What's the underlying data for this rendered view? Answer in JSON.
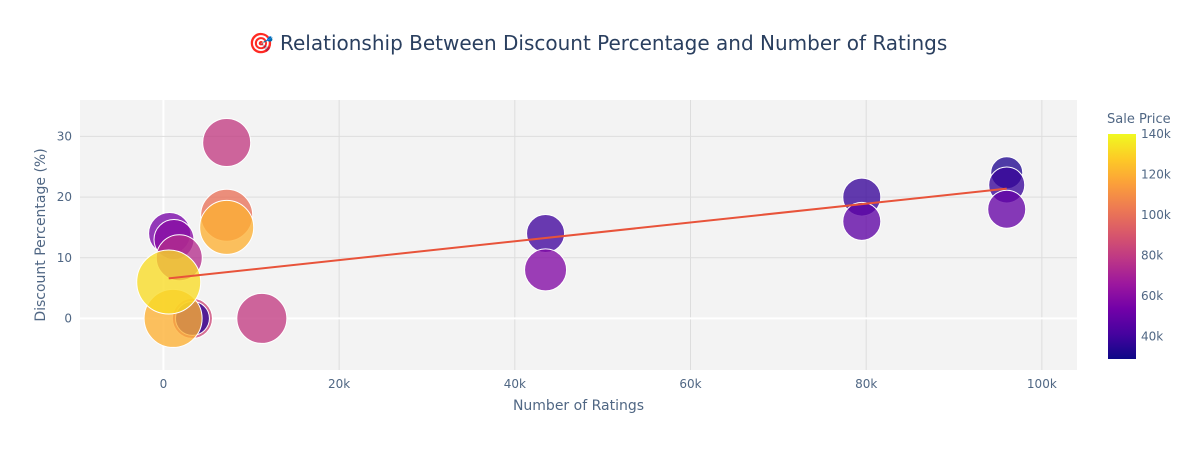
{
  "chart_data": {
    "type": "scatter",
    "title": "🎯 Relationship Between Discount Percentage and Number of Ratings",
    "xlabel": "Number of Ratings",
    "ylabel": "Discount Percentage (%)",
    "xlim": [
      -9500,
      104000
    ],
    "ylim": [
      -8.5,
      36
    ],
    "x_ticks": [
      0,
      20000,
      40000,
      60000,
      80000,
      100000
    ],
    "x_tick_labels": [
      "0",
      "20k",
      "40k",
      "60k",
      "80k",
      "100k"
    ],
    "y_ticks": [
      0,
      10,
      20,
      30
    ],
    "y_tick_labels": [
      "0",
      "10",
      "20",
      "30"
    ],
    "grid": true,
    "colorbar": {
      "title": "Sale Price",
      "range": [
        29000,
        140000
      ],
      "ticks": [
        40000,
        60000,
        80000,
        100000,
        120000,
        140000
      ],
      "tick_labels": [
        "40k",
        "60k",
        "80k",
        "100k",
        "120k",
        "140k"
      ],
      "colors": [
        "#0d0887",
        "#46039f",
        "#7201a8",
        "#9c179e",
        "#bd3786",
        "#d8576b",
        "#ed7953",
        "#fb9f3a",
        "#fdca26",
        "#f0f921"
      ]
    },
    "points": [
      {
        "x": 7200,
        "y": 29,
        "price": 80000,
        "size": 48
      },
      {
        "x": 7200,
        "y": 17,
        "price": 100000,
        "size": 52
      },
      {
        "x": 7200,
        "y": 15,
        "price": 120000,
        "size": 54
      },
      {
        "x": 700,
        "y": 14,
        "price": 55000,
        "size": 42
      },
      {
        "x": 1200,
        "y": 13,
        "price": 60000,
        "size": 40
      },
      {
        "x": 1800,
        "y": 10,
        "price": 75000,
        "size": 46
      },
      {
        "x": 3300,
        "y": 0,
        "price": 85000,
        "size": 40
      },
      {
        "x": 3300,
        "y": 0,
        "price": 36000,
        "size": 34
      },
      {
        "x": 1100,
        "y": 0,
        "price": 120000,
        "size": 58
      },
      {
        "x": 600,
        "y": 6,
        "price": 132000,
        "size": 64
      },
      {
        "x": 11200,
        "y": 0,
        "price": 80000,
        "size": 50
      },
      {
        "x": 43500,
        "y": 14,
        "price": 40000,
        "size": 38
      },
      {
        "x": 43500,
        "y": 8,
        "price": 58000,
        "size": 42
      },
      {
        "x": 79500,
        "y": 20,
        "price": 38000,
        "size": 38
      },
      {
        "x": 79500,
        "y": 16,
        "price": 48000,
        "size": 38
      },
      {
        "x": 96000,
        "y": 24,
        "price": 33000,
        "size": 32
      },
      {
        "x": 96000,
        "y": 22,
        "price": 38000,
        "size": 36
      },
      {
        "x": 96000,
        "y": 18,
        "price": 50000,
        "size": 38
      }
    ],
    "trendline": {
      "x": [
        600,
        96000
      ],
      "y": [
        6.6,
        21.4
      ],
      "color": "#e8533a"
    }
  }
}
